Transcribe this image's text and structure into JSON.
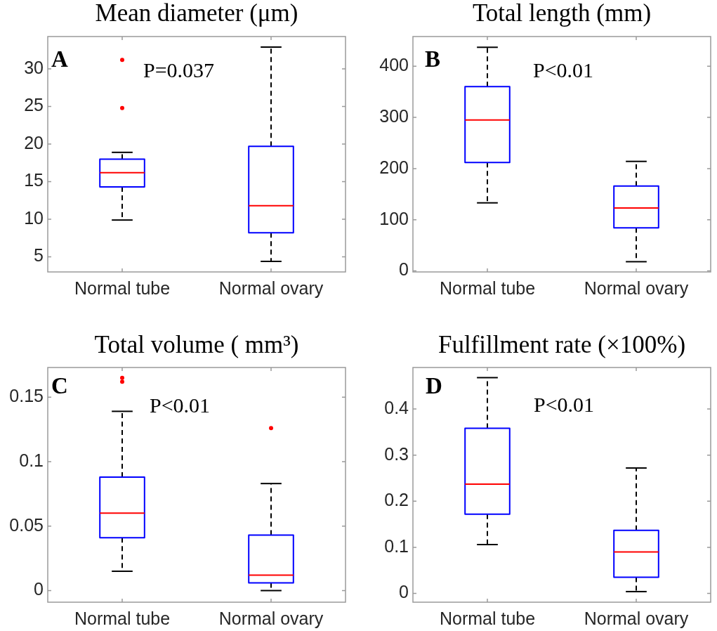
{
  "chart_data": [
    {
      "type": "box",
      "title": "Mean diameter (μm)",
      "categories": [
        "Normal tube",
        "Normal ovary"
      ],
      "color": "#0000ff",
      "ylim": [
        3,
        34.3
      ],
      "yticks": [
        5,
        10,
        15,
        20,
        25,
        30
      ],
      "boxes": [
        {
          "low": 9.9,
          "q1": 14.3,
          "median": 16.2,
          "q3": 18.0,
          "high": 18.9,
          "outliers": [
            24.8,
            31.2
          ]
        },
        {
          "low": 4.4,
          "q1": 8.2,
          "median": 11.8,
          "q3": 19.7,
          "high": 32.9
        }
      ],
      "annotations": [
        "A",
        "P=0.037"
      ]
    },
    {
      "type": "box",
      "title": "Total length (mm)",
      "categories": [
        "Normal tube",
        "Normal ovary"
      ],
      "color": "#0000ff",
      "ylim": [
        -2,
        458
      ],
      "yticks": [
        0,
        100,
        200,
        300,
        400
      ],
      "boxes": [
        {
          "low": 133,
          "q1": 212,
          "median": 295,
          "q3": 360,
          "high": 437
        },
        {
          "low": 18,
          "q1": 84,
          "median": 123,
          "q3": 166,
          "high": 214
        }
      ],
      "annotations": [
        "B",
        "P<0.01"
      ]
    },
    {
      "type": "box",
      "title": "Total volume ( mm³)",
      "categories": [
        "Normal tube",
        "Normal ovary"
      ],
      "color": "#0000ff",
      "ylim": [
        -0.009,
        0.173
      ],
      "yticks": [
        0,
        0.05,
        0.1,
        0.15
      ],
      "boxes": [
        {
          "low": 0.015,
          "q1": 0.041,
          "median": 0.06,
          "q3": 0.088,
          "high": 0.139,
          "outliers": [
            0.162,
            0.165
          ]
        },
        {
          "low": 0,
          "q1": 0.006,
          "median": 0.012,
          "q3": 0.043,
          "high": 0.083,
          "outliers": [
            0.126
          ]
        }
      ],
      "annotations": [
        "C",
        "P<0.01"
      ]
    },
    {
      "type": "box",
      "title": "Fulfillment rate (×100%)",
      "categories": [
        "Normal tube",
        "Normal ovary"
      ],
      "color": "#0000ff",
      "ylim": [
        -0.019,
        0.49
      ],
      "yticks": [
        0,
        0.1,
        0.2,
        0.3,
        0.4
      ],
      "boxes": [
        {
          "low": 0.106,
          "q1": 0.172,
          "median": 0.237,
          "q3": 0.358,
          "high": 0.468
        },
        {
          "low": 0.004,
          "q1": 0.035,
          "median": 0.09,
          "q3": 0.137,
          "high": 0.272
        }
      ],
      "annotations": [
        "D",
        "P<0.01"
      ]
    }
  ]
}
